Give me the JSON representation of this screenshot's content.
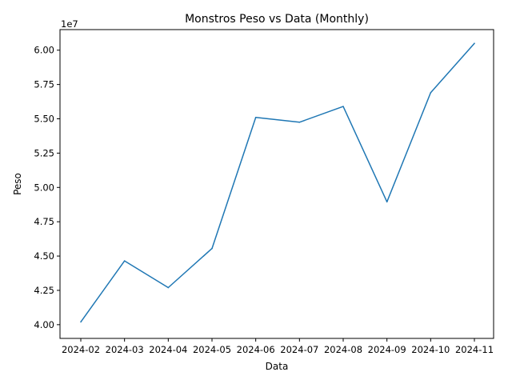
{
  "chart_data": {
    "type": "line",
    "title": "Monstros Peso vs Data (Monthly)",
    "xlabel": "Data",
    "ylabel": "Peso",
    "y_offset_label": "1e7",
    "x": [
      "2024-02",
      "2024-03",
      "2024-04",
      "2024-05",
      "2024-06",
      "2024-07",
      "2024-08",
      "2024-09",
      "2024-10",
      "2024-11"
    ],
    "series": [
      {
        "values": [
          40200000,
          44650000,
          42700000,
          45550000,
          55100000,
          54750000,
          55900000,
          48950000,
          56900000,
          60500000
        ]
      }
    ],
    "ylim": [
      39000000,
      61500000
    ],
    "yticks": [
      40000000,
      42500000,
      45000000,
      47500000,
      50000000,
      52500000,
      55000000,
      57500000,
      60000000
    ],
    "ytick_labels": [
      "4.00",
      "4.25",
      "4.50",
      "4.75",
      "5.00",
      "5.25",
      "5.50",
      "5.75",
      "6.00"
    ],
    "grid": false,
    "line_color": "#1f77b4"
  }
}
